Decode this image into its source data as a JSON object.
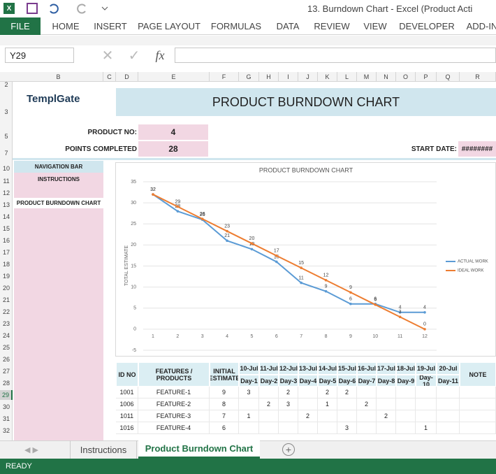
{
  "window": {
    "title": "13. Burndown Chart - Excel (Product Acti"
  },
  "ribbon": {
    "file": "FILE",
    "tabs": [
      "HOME",
      "INSERT",
      "PAGE LAYOUT",
      "FORMULAS",
      "DATA",
      "REVIEW",
      "VIEW",
      "DEVELOPER",
      "ADD-IN"
    ]
  },
  "formula_bar": {
    "name_box": "Y29",
    "function": "fx"
  },
  "sheet": {
    "columns": [
      "B",
      "C",
      "D",
      "E",
      "F",
      "G",
      "H",
      "I",
      "J",
      "K",
      "L",
      "M",
      "N",
      "O",
      "P",
      "Q",
      "R"
    ],
    "row_numbers": [
      2,
      3,
      5,
      7,
      10,
      11,
      12,
      13,
      14,
      15,
      16,
      17,
      18,
      19,
      20,
      21,
      22,
      23,
      24,
      25,
      26,
      27,
      28,
      29,
      30,
      31,
      32
    ],
    "logo": "TemplGate",
    "banner": "PRODUCT BURNDOWN CHART",
    "fields": [
      {
        "label": "PRODUCT NO:",
        "value": 4
      },
      {
        "label": "POINTS COMPLETED",
        "value": 28
      },
      {
        "label": "START DATE:",
        "value": "########"
      }
    ],
    "nav": [
      "NAVIGATION BAR",
      "INSTRUCTIONS",
      "PRODUCT BURNDOWN CHART"
    ],
    "table": {
      "headers": [
        "ID NO",
        "FEATURES / PRODUCTS",
        "INITIAL ESTIMATE"
      ],
      "dates": [
        "10-Jul",
        "11-Jul",
        "12-Jul",
        "13-Jul",
        "14-Jul",
        "15-Jul",
        "16-Jul",
        "17-Jul",
        "18-Jul",
        "19-Jul",
        "20-Jul"
      ],
      "days": [
        "Day-1",
        "Day-2",
        "Day-3",
        "Day-4",
        "Day-5",
        "Day-6",
        "Day-7",
        "Day-8",
        "Day-9",
        "Day-10",
        "Day-11"
      ],
      "note": "NOTE",
      "rows": [
        [
          1001,
          "FEATURE-1",
          9,
          3,
          null,
          2,
          null,
          2,
          2,
          null,
          null,
          null,
          null,
          null,
          null
        ],
        [
          1006,
          "FEATURE-2",
          8,
          null,
          2,
          3,
          null,
          1,
          null,
          2,
          null,
          null,
          null,
          null,
          null
        ],
        [
          1011,
          "FEATURE-3",
          7,
          1,
          null,
          null,
          2,
          null,
          null,
          null,
          2,
          null,
          null,
          null,
          null
        ],
        [
          1016,
          "FEATURE-4",
          6,
          null,
          null,
          null,
          null,
          null,
          3,
          null,
          null,
          null,
          1,
          null,
          null
        ]
      ]
    }
  },
  "chart_data": {
    "type": "line",
    "title": "PRODUCT BURNDOWN CHART",
    "y_label": "TOTAL ESTIMATE",
    "categories": [
      1,
      2,
      3,
      4,
      5,
      6,
      7,
      8,
      9,
      10,
      11,
      12
    ],
    "series": [
      {
        "name": "ACTUAL  WORK",
        "color": "#5b9bd5",
        "values": [
          32,
          28,
          26,
          21,
          19,
          16,
          11,
          9,
          6,
          6,
          4,
          4
        ]
      },
      {
        "name": "IDEAL WORK",
        "color": "#ed7d31",
        "values": [
          32,
          29.09,
          26.18,
          23.27,
          20.36,
          17.45,
          14.55,
          11.64,
          8.73,
          5.82,
          2.91,
          0
        ],
        "value_labels": [
          "32",
          "29",
          "26",
          "23",
          "20",
          "17",
          "15",
          "12",
          "9",
          "6",
          "3",
          "0"
        ]
      }
    ],
    "ylim": [
      -5,
      35
    ],
    "yticks": [
      -5,
      0,
      5,
      10,
      15,
      20,
      25,
      30,
      35
    ],
    "grid": true,
    "legend": "right"
  },
  "sheet_tabs": [
    "Instructions",
    "Product Burndown Chart"
  ],
  "status": "READY"
}
